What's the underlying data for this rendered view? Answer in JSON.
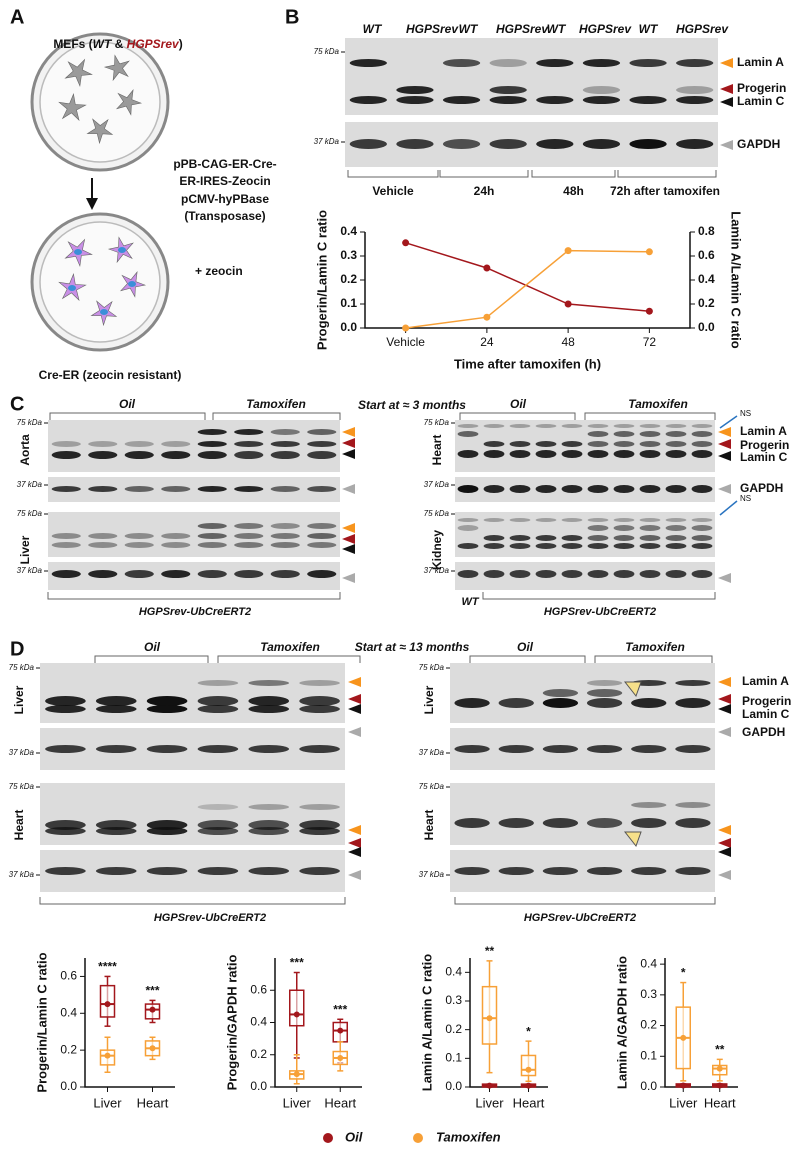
{
  "panels": {
    "a": {
      "label": "A",
      "heading": [
        "MEFs (",
        "WT",
        " & ",
        "HGPSrev",
        ")"
      ],
      "plasmids": [
        "pPB-CAG-ER-Cre-",
        "ER-IRES-Zeocin",
        "pCMV-hyPBase",
        "(Transposase)"
      ],
      "selection": "+ zeocin",
      "result": "Cre-ER (zeocin resistant)"
    },
    "b": {
      "label": "B",
      "lanes": [
        "WT",
        "HGPSrev",
        "WT",
        "HGPSrev",
        "WT",
        "HGPSrev",
        "WT",
        "HGPSrev"
      ],
      "markers": [
        "75 kDa",
        "37 kDa"
      ],
      "bands": [
        "Lamin A",
        "Progerin",
        "Lamin C",
        "GAPDH"
      ],
      "groups": [
        "Vehicle",
        "24h",
        "48h",
        "72h after tamoxifen"
      ]
    },
    "c": {
      "label": "C",
      "title": "Start at ≈ 3 months",
      "treatments": [
        "Oil",
        "Tamoxifen"
      ],
      "markers": [
        "75 kDa",
        "37 kDa"
      ],
      "left_tissues": [
        "Aorta",
        "Liver"
      ],
      "right_tissues": [
        "Heart",
        "Kidney"
      ],
      "genotype": "HGPSrev-UbCreERT2",
      "control": "WT",
      "nonspecific": "NS",
      "bands": [
        "Lamin A",
        "Progerin",
        "Lamin C",
        "GAPDH"
      ]
    },
    "d": {
      "label": "D",
      "title": "Start at ≈ 13 months",
      "treatments": [
        "Oil",
        "Tamoxifen"
      ],
      "markers": [
        "75 kDa",
        "37 kDa"
      ],
      "tissues": [
        "Liver",
        "Heart"
      ],
      "genotype": "HGPSrev-UbCreERT2",
      "bands": [
        "Lamin A",
        "Progerin",
        "Lamin C",
        "GAPDH"
      ]
    }
  },
  "chart_data": [
    {
      "type": "line",
      "categories": [
        "Vehicle",
        "24",
        "48",
        "72"
      ],
      "x_label": "Time after tamoxifen (h)",
      "y_label": "Progerin/Lamin C ratio",
      "y2_label": "Lamin A/Lamin C ratio",
      "ylim": [
        0,
        0.4
      ],
      "yticks": [
        {
          "value": 0,
          "label": "0.0"
        },
        0.1,
        0.2,
        0.3,
        0.4
      ],
      "y2lim": [
        0,
        0.8
      ],
      "y2ticks": [
        {
          "value": 0,
          "label": "0.0"
        },
        0.2,
        0.4,
        0.6,
        0.8
      ],
      "series": [
        {
          "name": "Progerin/Lamin C",
          "color": "#a3171c",
          "values": [
            0.355,
            0.25,
            0.1,
            0.07
          ]
        },
        {
          "name": "Lamin A/Lamin C",
          "color": "#f7a037",
          "axis": "y2",
          "values": [
            0,
            0.09,
            0.645,
            0.635
          ]
        }
      ]
    },
    {
      "type": "box",
      "y_label": "Progerin/Lamin C ratio",
      "categories": [
        "Liver",
        "Heart"
      ],
      "ylim": [
        0,
        0.7
      ],
      "yticks": [
        {
          "value": 0,
          "label": "0.0"
        },
        0.2,
        0.4,
        0.6
      ],
      "annotations": [
        "****",
        "***"
      ],
      "series": [
        {
          "name": "Oil",
          "color": "#a3171c",
          "values": [
            {
              "min": 0.33,
              "q1": 0.38,
              "median": 0.45,
              "q3": 0.55,
              "max": 0.6
            },
            {
              "min": 0.35,
              "q1": 0.37,
              "median": 0.42,
              "q3": 0.45,
              "max": 0.47
            }
          ]
        },
        {
          "name": "Tamoxifen",
          "color": "#f7a037",
          "values": [
            {
              "min": 0.08,
              "q1": 0.12,
              "median": 0.17,
              "q3": 0.2,
              "max": 0.27
            },
            {
              "min": 0.15,
              "q1": 0.17,
              "median": 0.21,
              "q3": 0.25,
              "max": 0.27
            }
          ]
        }
      ]
    },
    {
      "type": "box",
      "y_label": "Progerin/GAPDH ratio",
      "categories": [
        "Liver",
        "Heart"
      ],
      "ylim": [
        0,
        0.8
      ],
      "yticks": [
        {
          "value": 0,
          "label": "0.0"
        },
        0.2,
        0.4,
        0.6
      ],
      "annotations": [
        "***",
        "***"
      ],
      "series": [
        {
          "name": "Oil",
          "color": "#a3171c",
          "values": [
            {
              "min": 0.18,
              "q1": 0.38,
              "median": 0.45,
              "q3": 0.6,
              "max": 0.71
            },
            {
              "min": 0.15,
              "q1": 0.28,
              "median": 0.35,
              "q3": 0.4,
              "max": 0.42
            }
          ]
        },
        {
          "name": "Tamoxifen",
          "color": "#f7a037",
          "values": [
            {
              "min": 0.02,
              "q1": 0.05,
              "median": 0.08,
              "q3": 0.1,
              "max": 0.2
            },
            {
              "min": 0.1,
              "q1": 0.14,
              "median": 0.18,
              "q3": 0.22,
              "max": 0.28
            }
          ]
        }
      ]
    },
    {
      "type": "box",
      "y_label": "Lamin A/Lamin C ratio",
      "categories": [
        "Liver",
        "Heart"
      ],
      "ylim": [
        0,
        0.45
      ],
      "yticks": [
        {
          "value": 0,
          "label": "0.0"
        },
        0.1,
        0.2,
        0.3,
        0.4
      ],
      "annotations": [
        "**",
        "*"
      ],
      "series": [
        {
          "name": "Oil",
          "color": "#a3171c",
          "values": [
            {
              "min": 0,
              "q1": 0,
              "median": 0.005,
              "q3": 0.01,
              "max": 0.01
            },
            {
              "min": 0,
              "q1": 0,
              "median": 0.005,
              "q3": 0.01,
              "max": 0.01
            }
          ]
        },
        {
          "name": "Tamoxifen",
          "color": "#f7a037",
          "values": [
            {
              "min": 0.05,
              "q1": 0.15,
              "median": 0.24,
              "q3": 0.35,
              "max": 0.44
            },
            {
              "min": 0.02,
              "q1": 0.04,
              "median": 0.06,
              "q3": 0.11,
              "max": 0.16
            }
          ]
        }
      ]
    },
    {
      "type": "box",
      "y_label": "Lamin A/GAPDH ratio",
      "categories": [
        "Liver",
        "Heart"
      ],
      "ylim": [
        0,
        0.42
      ],
      "yticks": [
        {
          "value": 0,
          "label": "0.0"
        },
        0.1,
        0.2,
        0.3,
        0.4
      ],
      "annotations": [
        "*",
        "**"
      ],
      "series": [
        {
          "name": "Oil",
          "color": "#a3171c",
          "values": [
            {
              "min": 0,
              "q1": 0,
              "median": 0.005,
              "q3": 0.01,
              "max": 0.01
            },
            {
              "min": 0,
              "q1": 0,
              "median": 0.005,
              "q3": 0.01,
              "max": 0.01
            }
          ]
        },
        {
          "name": "Tamoxifen",
          "color": "#f7a037",
          "values": [
            {
              "min": 0.02,
              "q1": 0.06,
              "median": 0.16,
              "q3": 0.26,
              "max": 0.34
            },
            {
              "min": 0.02,
              "q1": 0.04,
              "median": 0.06,
              "q3": 0.07,
              "max": 0.09
            }
          ]
        }
      ]
    }
  ]
}
